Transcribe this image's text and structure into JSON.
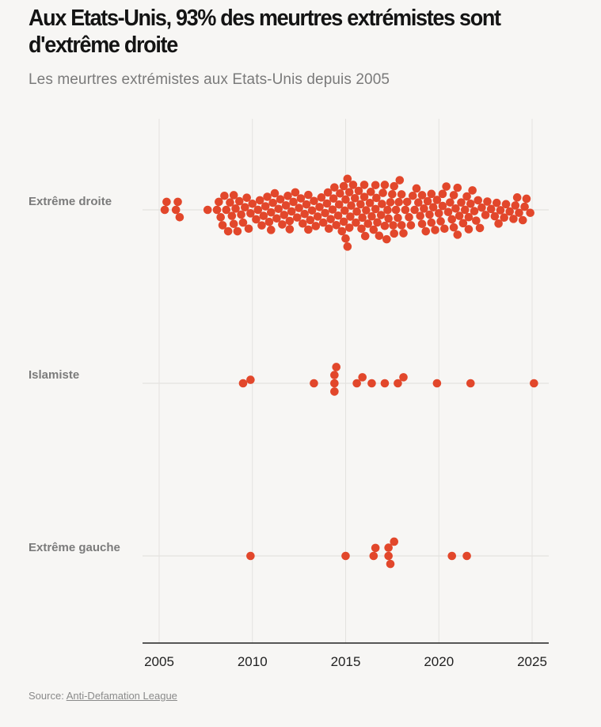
{
  "header": {
    "title": "Aux Etats-Unis, 93% des meurtres extrémistes sont d'extrême droite",
    "subtitle": "Les meurtres extrémistes aux Etats-Unis depuis 2005"
  },
  "footer": {
    "source_prefix": "Source: ",
    "source_link": "Anti-Defamation League"
  },
  "colors": {
    "dot": "#e2472b",
    "grid": "#e4e2df",
    "axis": "#222222",
    "background": "#f7f6f4"
  },
  "chart_data": {
    "type": "scatter",
    "subtype": "beeswarm",
    "title": "Aux Etats-Unis, 93% des meurtres extrémistes sont d'extrême droite",
    "subtitle": "Les meurtres extrémistes aux Etats-Unis depuis 2005",
    "xlabel": "",
    "ylabel": "",
    "xlim": [
      2005,
      2025
    ],
    "xticks": [
      2005,
      2010,
      2015,
      2020,
      2025
    ],
    "grid": true,
    "series": [
      {
        "name": "Extrême droite",
        "x": [
          2005.3,
          2005.4,
          2005.9,
          2006.0,
          2006.1,
          2007.6,
          2008.1,
          2008.3,
          2008.5,
          2008.7,
          2008.9,
          2009.1,
          2009.3,
          2009.5,
          2009.7,
          2009.9,
          2008.2,
          2008.4,
          2008.6,
          2008.8,
          2009.0,
          2009.2,
          2009.4,
          2009.6,
          2009.8,
          2010.2,
          2010.4,
          2010.6,
          2010.8,
          2011.0,
          2011.2,
          2011.4,
          2011.6,
          2011.8,
          2010.3,
          2010.5,
          2010.7,
          2010.9,
          2011.1,
          2011.3,
          2011.5,
          2011.7,
          2011.9,
          2012.0,
          2012.2,
          2012.4,
          2012.6,
          2012.8,
          2013.0,
          2013.2,
          2013.4,
          2013.6,
          2013.8,
          2012.1,
          2012.3,
          2012.5,
          2012.7,
          2012.9,
          2013.1,
          2013.3,
          2013.5,
          2013.7,
          2013.9,
          2014.0,
          2014.2,
          2014.4,
          2014.6,
          2014.8,
          2015.0,
          2015.2,
          2015.4,
          2015.6,
          2015.8,
          2014.1,
          2014.3,
          2014.5,
          2014.7,
          2014.9,
          2015.1,
          2015.3,
          2015.5,
          2015.7,
          2015.9,
          2014.05,
          2014.35,
          2014.65,
          2014.95,
          2015.25,
          2015.55,
          2015.85,
          2016.0,
          2016.2,
          2016.4,
          2016.6,
          2016.8,
          2017.0,
          2017.2,
          2017.4,
          2017.6,
          2017.8,
          2016.1,
          2016.3,
          2016.5,
          2016.7,
          2016.9,
          2017.1,
          2017.3,
          2017.5,
          2017.7,
          2017.9,
          2016.05,
          2016.35,
          2016.65,
          2016.95,
          2017.25,
          2017.55,
          2017.85,
          2018.0,
          2018.2,
          2018.4,
          2018.6,
          2018.8,
          2019.0,
          2019.2,
          2019.4,
          2019.6,
          2019.8,
          2018.1,
          2018.3,
          2018.5,
          2018.7,
          2018.9,
          2019.1,
          2019.3,
          2019.5,
          2019.7,
          2019.9,
          2020.0,
          2020.2,
          2020.4,
          2020.6,
          2020.8,
          2021.0,
          2021.2,
          2021.4,
          2021.6,
          2021.8,
          2020.1,
          2020.3,
          2020.5,
          2020.7,
          2020.9,
          2021.1,
          2021.3,
          2021.5,
          2021.7,
          2021.9,
          2022.1,
          2022.3,
          2022.5,
          2022.8,
          2023.0,
          2023.3,
          2023.5,
          2023.8,
          2024.0,
          2024.2,
          2024.5,
          2024.7,
          2022.2,
          2022.6,
          2023.1,
          2023.6,
          2024.1,
          2024.6,
          2024.9,
          2009.0,
          2010.0,
          2011.0,
          2012.0,
          2013.0,
          2015.1,
          2016.0,
          2017.1,
          2018.0,
          2019.1,
          2020.2,
          2021.0,
          2022.0,
          2023.2,
          2024.3,
          2015.0,
          2014.9,
          2015.2,
          2016.6,
          2017.6,
          2019.6,
          2020.8,
          2021.6
        ],
        "y": null
      },
      {
        "name": "Islamiste",
        "x": [
          2009.5,
          2009.9,
          2013.3,
          2014.4,
          2014.4,
          2014.4,
          2014.5,
          2015.6,
          2015.9,
          2016.4,
          2017.1,
          2017.8,
          2018.1,
          2019.9,
          2021.7,
          2025.1
        ]
      },
      {
        "name": "Extrême gauche",
        "x": [
          2009.9,
          2015.0,
          2016.5,
          2016.6,
          2017.3,
          2017.4,
          2017.6,
          2017.3,
          2020.7,
          2021.5
        ]
      }
    ]
  }
}
